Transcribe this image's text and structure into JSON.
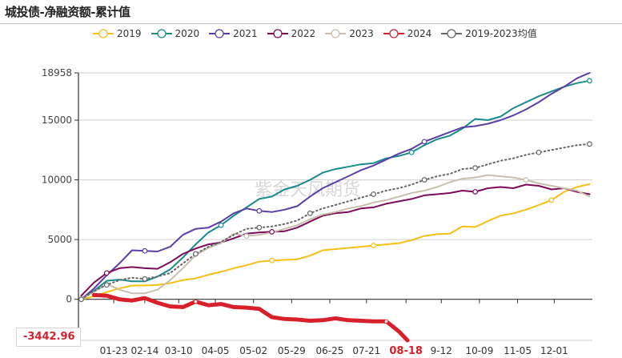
{
  "title": "城投债-净融资额-累计值",
  "chart_data": {
    "type": "line",
    "title": "城投债-净融资额-累计值",
    "xlabel": "",
    "ylabel": "",
    "x_unit": "day-of-year",
    "xlim": [
      -2,
      362
    ],
    "ylim": [
      -3442.96,
      18958
    ],
    "y_ticks": [
      {
        "value": 18958,
        "label": "18958"
      },
      {
        "value": 15000,
        "label": "15000"
      },
      {
        "value": 10000,
        "label": "10000"
      },
      {
        "value": 5000,
        "label": "5000"
      },
      {
        "value": 0,
        "label": "0"
      }
    ],
    "y_min_label": "-3442.96",
    "x_ticks": [
      {
        "day": 23,
        "label": "01-23"
      },
      {
        "day": 45,
        "label": "02-14"
      },
      {
        "day": 69,
        "label": "03-10"
      },
      {
        "day": 95,
        "label": "04-05"
      },
      {
        "day": 122,
        "label": "05-02"
      },
      {
        "day": 149,
        "label": "05-29"
      },
      {
        "day": 176,
        "label": "06-25"
      },
      {
        "day": 202,
        "label": "07-21"
      },
      {
        "day": 230,
        "label": "08-18",
        "highlight": true
      },
      {
        "day": 255,
        "label": "9-12"
      },
      {
        "day": 282,
        "label": "10-09"
      },
      {
        "day": 309,
        "label": "11-05"
      },
      {
        "day": 335,
        "label": "12-01"
      }
    ],
    "grid": true,
    "legend_position": "top-right",
    "watermark": "紫金天风期货",
    "series": [
      {
        "name": "2019",
        "color": "#f5bf13",
        "style": "solid",
        "width": 2,
        "points": [
          [
            0,
            0
          ],
          [
            9,
            250
          ],
          [
            18,
            600
          ],
          [
            27,
            900
          ],
          [
            36,
            1150
          ],
          [
            45,
            1150
          ],
          [
            54,
            1200
          ],
          [
            63,
            1350
          ],
          [
            72,
            1600
          ],
          [
            81,
            1750
          ],
          [
            90,
            2050
          ],
          [
            99,
            2300
          ],
          [
            108,
            2600
          ],
          [
            117,
            2850
          ],
          [
            126,
            3150
          ],
          [
            135,
            3250
          ],
          [
            144,
            3300
          ],
          [
            153,
            3350
          ],
          [
            162,
            3650
          ],
          [
            171,
            4100
          ],
          [
            180,
            4200
          ],
          [
            189,
            4300
          ],
          [
            198,
            4400
          ],
          [
            207,
            4500
          ],
          [
            216,
            4600
          ],
          [
            225,
            4700
          ],
          [
            234,
            4950
          ],
          [
            243,
            5300
          ],
          [
            252,
            5450
          ],
          [
            261,
            5500
          ],
          [
            270,
            6100
          ],
          [
            279,
            6050
          ],
          [
            288,
            6550
          ],
          [
            297,
            7000
          ],
          [
            306,
            7200
          ],
          [
            315,
            7500
          ],
          [
            324,
            7900
          ],
          [
            333,
            8300
          ],
          [
            342,
            9000
          ],
          [
            351,
            9400
          ],
          [
            360,
            9650
          ]
        ]
      },
      {
        "name": "2020",
        "color": "#1a8a8c",
        "style": "solid",
        "width": 2,
        "points": [
          [
            0,
            0
          ],
          [
            9,
            700
          ],
          [
            18,
            1550
          ],
          [
            27,
            1650
          ],
          [
            36,
            1500
          ],
          [
            45,
            1500
          ],
          [
            54,
            1900
          ],
          [
            63,
            2500
          ],
          [
            72,
            3500
          ],
          [
            81,
            4600
          ],
          [
            90,
            5600
          ],
          [
            99,
            6200
          ],
          [
            108,
            7000
          ],
          [
            117,
            7700
          ],
          [
            126,
            8400
          ],
          [
            135,
            8600
          ],
          [
            144,
            9200
          ],
          [
            153,
            9500
          ],
          [
            162,
            10000
          ],
          [
            171,
            10600
          ],
          [
            180,
            10900
          ],
          [
            189,
            11100
          ],
          [
            198,
            11300
          ],
          [
            207,
            11400
          ],
          [
            216,
            11800
          ],
          [
            225,
            12000
          ],
          [
            234,
            12300
          ],
          [
            243,
            12900
          ],
          [
            252,
            13400
          ],
          [
            261,
            13700
          ],
          [
            270,
            14300
          ],
          [
            279,
            15100
          ],
          [
            288,
            15000
          ],
          [
            297,
            15300
          ],
          [
            306,
            16000
          ],
          [
            315,
            16500
          ],
          [
            324,
            17000
          ],
          [
            333,
            17400
          ],
          [
            342,
            17800
          ],
          [
            351,
            18100
          ],
          [
            360,
            18300
          ]
        ]
      },
      {
        "name": "2021",
        "color": "#5b3fa6",
        "style": "solid",
        "width": 2,
        "points": [
          [
            0,
            0
          ],
          [
            9,
            900
          ],
          [
            18,
            2000
          ],
          [
            27,
            3000
          ],
          [
            36,
            4100
          ],
          [
            45,
            4050
          ],
          [
            54,
            4000
          ],
          [
            63,
            4400
          ],
          [
            72,
            5400
          ],
          [
            81,
            5900
          ],
          [
            90,
            6000
          ],
          [
            99,
            6500
          ],
          [
            108,
            7200
          ],
          [
            117,
            7600
          ],
          [
            126,
            7400
          ],
          [
            135,
            7300
          ],
          [
            144,
            7500
          ],
          [
            153,
            7800
          ],
          [
            162,
            8600
          ],
          [
            171,
            9300
          ],
          [
            180,
            9800
          ],
          [
            189,
            10300
          ],
          [
            198,
            10800
          ],
          [
            207,
            11200
          ],
          [
            216,
            11700
          ],
          [
            225,
            12200
          ],
          [
            234,
            12600
          ],
          [
            243,
            13200
          ],
          [
            252,
            13600
          ],
          [
            261,
            14000
          ],
          [
            270,
            14400
          ],
          [
            279,
            14500
          ],
          [
            288,
            14700
          ],
          [
            297,
            15000
          ],
          [
            306,
            15400
          ],
          [
            315,
            15900
          ],
          [
            324,
            16500
          ],
          [
            333,
            17200
          ],
          [
            342,
            17800
          ],
          [
            351,
            18500
          ],
          [
            360,
            18958
          ]
        ]
      },
      {
        "name": "2022",
        "color": "#7d0c5c",
        "style": "solid",
        "width": 2,
        "points": [
          [
            0,
            300
          ],
          [
            9,
            1400
          ],
          [
            18,
            2200
          ],
          [
            27,
            2600
          ],
          [
            36,
            2700
          ],
          [
            45,
            2600
          ],
          [
            54,
            2550
          ],
          [
            63,
            3100
          ],
          [
            72,
            3800
          ],
          [
            81,
            4250
          ],
          [
            90,
            4600
          ],
          [
            99,
            4750
          ],
          [
            108,
            5100
          ],
          [
            117,
            5500
          ],
          [
            126,
            5600
          ],
          [
            135,
            5650
          ],
          [
            144,
            5700
          ],
          [
            153,
            6000
          ],
          [
            162,
            6500
          ],
          [
            171,
            7000
          ],
          [
            180,
            7200
          ],
          [
            189,
            7300
          ],
          [
            198,
            7600
          ],
          [
            207,
            7700
          ],
          [
            216,
            8000
          ],
          [
            225,
            8200
          ],
          [
            234,
            8400
          ],
          [
            243,
            8700
          ],
          [
            252,
            8800
          ],
          [
            261,
            8900
          ],
          [
            270,
            9100
          ],
          [
            279,
            9000
          ],
          [
            288,
            9300
          ],
          [
            297,
            9400
          ],
          [
            306,
            9300
          ],
          [
            315,
            9600
          ],
          [
            324,
            9500
          ],
          [
            333,
            9200
          ],
          [
            342,
            9300
          ],
          [
            351,
            9000
          ],
          [
            360,
            8800
          ]
        ]
      },
      {
        "name": "2023",
        "color": "#c8bfae",
        "style": "solid",
        "width": 2,
        "points": [
          [
            0,
            0
          ],
          [
            9,
            600
          ],
          [
            18,
            1300
          ],
          [
            27,
            800
          ],
          [
            36,
            500
          ],
          [
            45,
            500
          ],
          [
            54,
            800
          ],
          [
            63,
            1600
          ],
          [
            72,
            2600
          ],
          [
            81,
            3700
          ],
          [
            90,
            4300
          ],
          [
            99,
            4700
          ],
          [
            108,
            5500
          ],
          [
            117,
            5300
          ],
          [
            126,
            5400
          ],
          [
            135,
            5600
          ],
          [
            144,
            5900
          ],
          [
            153,
            6200
          ],
          [
            162,
            6700
          ],
          [
            171,
            7100
          ],
          [
            180,
            7300
          ],
          [
            189,
            7600
          ],
          [
            198,
            7800
          ],
          [
            207,
            8100
          ],
          [
            216,
            8300
          ],
          [
            225,
            8600
          ],
          [
            234,
            8900
          ],
          [
            243,
            9100
          ],
          [
            252,
            9400
          ],
          [
            261,
            9800
          ],
          [
            270,
            10100
          ],
          [
            279,
            10200
          ],
          [
            288,
            10400
          ],
          [
            297,
            10300
          ],
          [
            306,
            10200
          ],
          [
            315,
            10000
          ],
          [
            324,
            9700
          ],
          [
            333,
            9500
          ],
          [
            342,
            9300
          ],
          [
            351,
            9100
          ],
          [
            360,
            8600
          ]
        ]
      },
      {
        "name": "2024",
        "color": "#d7202a",
        "style": "solid",
        "width": 5,
        "points": [
          [
            9,
            350
          ],
          [
            18,
            300
          ],
          [
            27,
            0
          ],
          [
            36,
            -100
          ],
          [
            45,
            100
          ],
          [
            54,
            -300
          ],
          [
            63,
            -600
          ],
          [
            72,
            -650
          ],
          [
            81,
            -200
          ],
          [
            90,
            -500
          ],
          [
            99,
            -400
          ],
          [
            108,
            -650
          ],
          [
            117,
            -700
          ],
          [
            126,
            -800
          ],
          [
            135,
            -1500
          ],
          [
            144,
            -1650
          ],
          [
            153,
            -1700
          ],
          [
            162,
            -1800
          ],
          [
            171,
            -1750
          ],
          [
            180,
            -1600
          ],
          [
            189,
            -1750
          ],
          [
            198,
            -1800
          ],
          [
            207,
            -1850
          ],
          [
            216,
            -1850
          ],
          [
            225,
            -2700
          ],
          [
            231,
            -3442.96
          ]
        ]
      },
      {
        "name": "2019-2023均值",
        "color": "#666666",
        "style": "dotted",
        "width": 2,
        "points": [
          [
            0,
            0
          ],
          [
            9,
            700
          ],
          [
            18,
            1200
          ],
          [
            27,
            1600
          ],
          [
            36,
            1800
          ],
          [
            45,
            1700
          ],
          [
            54,
            1900
          ],
          [
            63,
            2200
          ],
          [
            72,
            3000
          ],
          [
            81,
            3800
          ],
          [
            90,
            4400
          ],
          [
            99,
            4800
          ],
          [
            108,
            5400
          ],
          [
            117,
            5900
          ],
          [
            126,
            6000
          ],
          [
            135,
            6100
          ],
          [
            144,
            6300
          ],
          [
            153,
            6600
          ],
          [
            162,
            7200
          ],
          [
            171,
            7600
          ],
          [
            180,
            7900
          ],
          [
            189,
            8200
          ],
          [
            198,
            8500
          ],
          [
            207,
            8800
          ],
          [
            216,
            9100
          ],
          [
            225,
            9300
          ],
          [
            234,
            9600
          ],
          [
            243,
            10000
          ],
          [
            252,
            10300
          ],
          [
            261,
            10500
          ],
          [
            270,
            10900
          ],
          [
            279,
            11000
          ],
          [
            288,
            11300
          ],
          [
            297,
            11600
          ],
          [
            306,
            11800
          ],
          [
            315,
            12100
          ],
          [
            324,
            12300
          ],
          [
            333,
            12500
          ],
          [
            342,
            12700
          ],
          [
            351,
            12900
          ],
          [
            360,
            13000
          ]
        ]
      }
    ],
    "markers": [
      {
        "series": "2019",
        "days": [
          135,
          207,
          333
        ]
      },
      {
        "series": "2020",
        "days": [
          99,
          234,
          360
        ]
      },
      {
        "series": "2021",
        "days": [
          45,
          126,
          243
        ]
      },
      {
        "series": "2022",
        "days": [
          18,
          135,
          279
        ]
      },
      {
        "series": "2023",
        "days": [
          117,
          315
        ]
      },
      {
        "series": "2024",
        "days": [
          81,
          216
        ]
      },
      {
        "series": "2019-2023均值",
        "days": [
          0,
          18,
          45,
          81,
          126,
          162,
          207,
          243,
          279,
          324,
          360
        ]
      }
    ]
  },
  "legend": [
    {
      "label": "2019",
      "color": "#f5bf13"
    },
    {
      "label": "2020",
      "color": "#1a8a8c"
    },
    {
      "label": "2021",
      "color": "#5b3fa6"
    },
    {
      "label": "2022",
      "color": "#7d0c5c"
    },
    {
      "label": "2023",
      "color": "#c8bfae"
    },
    {
      "label": "2024",
      "color": "#d7202a"
    },
    {
      "label": "2019-2023均值",
      "color": "#666666"
    }
  ]
}
